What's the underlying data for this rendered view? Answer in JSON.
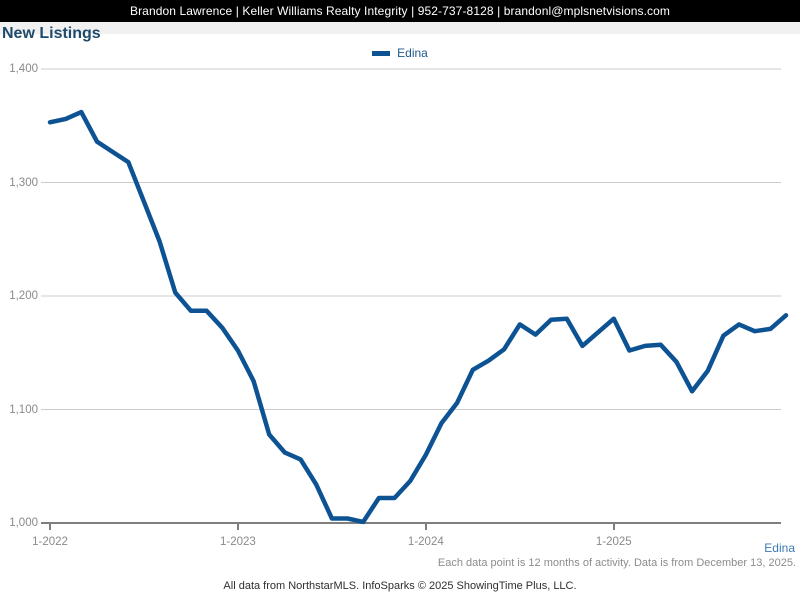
{
  "header": {
    "contact_bar": "Brandon Lawrence | Keller Williams Realty Integrity | 952-737-8128 | brandonl@mplsnetvisions.com"
  },
  "title": "New Listings",
  "legend": {
    "label": "Edina",
    "color": "#0d5393"
  },
  "footer": {
    "series_label": "Edina",
    "note": "Each data point is 12 months of activity. Data is from December 13, 2025.",
    "attribution": "All data from NorthstarMLS. InfoSparks © 2025 ShowingTime Plus, LLC."
  },
  "chart_data": {
    "type": "line",
    "title": "New Listings",
    "x_start": "1-2022",
    "x_interval": "month",
    "x_tick_labels": [
      "1-2022",
      "1-2023",
      "1-2024",
      "1-2025"
    ],
    "y_tick_labels": [
      "1,000",
      "1,100",
      "1,200",
      "1,300",
      "1,400"
    ],
    "y_ticks": [
      1000,
      1100,
      1200,
      1300,
      1400
    ],
    "ylim": [
      1000,
      1400
    ],
    "grid": "horizontal",
    "legend_position": "top-center",
    "series": [
      {
        "name": "Edina",
        "color": "#0d5393",
        "values": [
          1353,
          1356,
          1362,
          1336,
          1327,
          1318,
          1283,
          1248,
          1203,
          1187,
          1187,
          1172,
          1152,
          1125,
          1078,
          1062,
          1056,
          1034,
          1004,
          1004,
          1001,
          1022,
          1022,
          1037,
          1060,
          1088,
          1106,
          1135,
          1143,
          1153,
          1175,
          1166,
          1179,
          1180,
          1156,
          1168,
          1180,
          1152,
          1156,
          1157,
          1142,
          1116,
          1134,
          1165,
          1175,
          1169,
          1171,
          1183
        ]
      }
    ]
  }
}
